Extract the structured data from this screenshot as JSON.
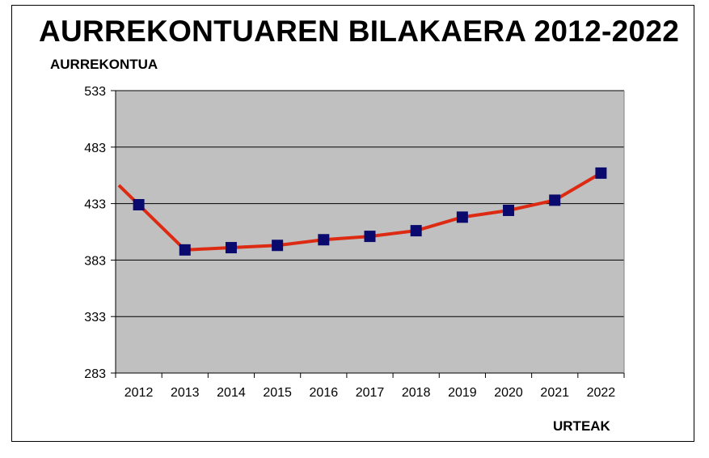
{
  "chart_data": {
    "type": "line",
    "title": "AURREKONTUAREN BILAKAERA 2012-2022",
    "ylabel": "AURREKONTUA",
    "xlabel": "URTEAK",
    "categories": [
      "2012",
      "2013",
      "2014",
      "2015",
      "2016",
      "2017",
      "2018",
      "2019",
      "2020",
      "2021",
      "2022"
    ],
    "series": [
      {
        "values": [
          432,
          392,
          394,
          396,
          401,
          404,
          409,
          421,
          427,
          436,
          460
        ]
      }
    ],
    "yticks": [
      "283",
      "333",
      "383",
      "433",
      "483",
      "533"
    ],
    "ylim": [
      283,
      533
    ],
    "grid": true,
    "line_color": "#dd2a12",
    "marker_color": "#0a0a6e",
    "plot_background": "#c0c0c0"
  }
}
